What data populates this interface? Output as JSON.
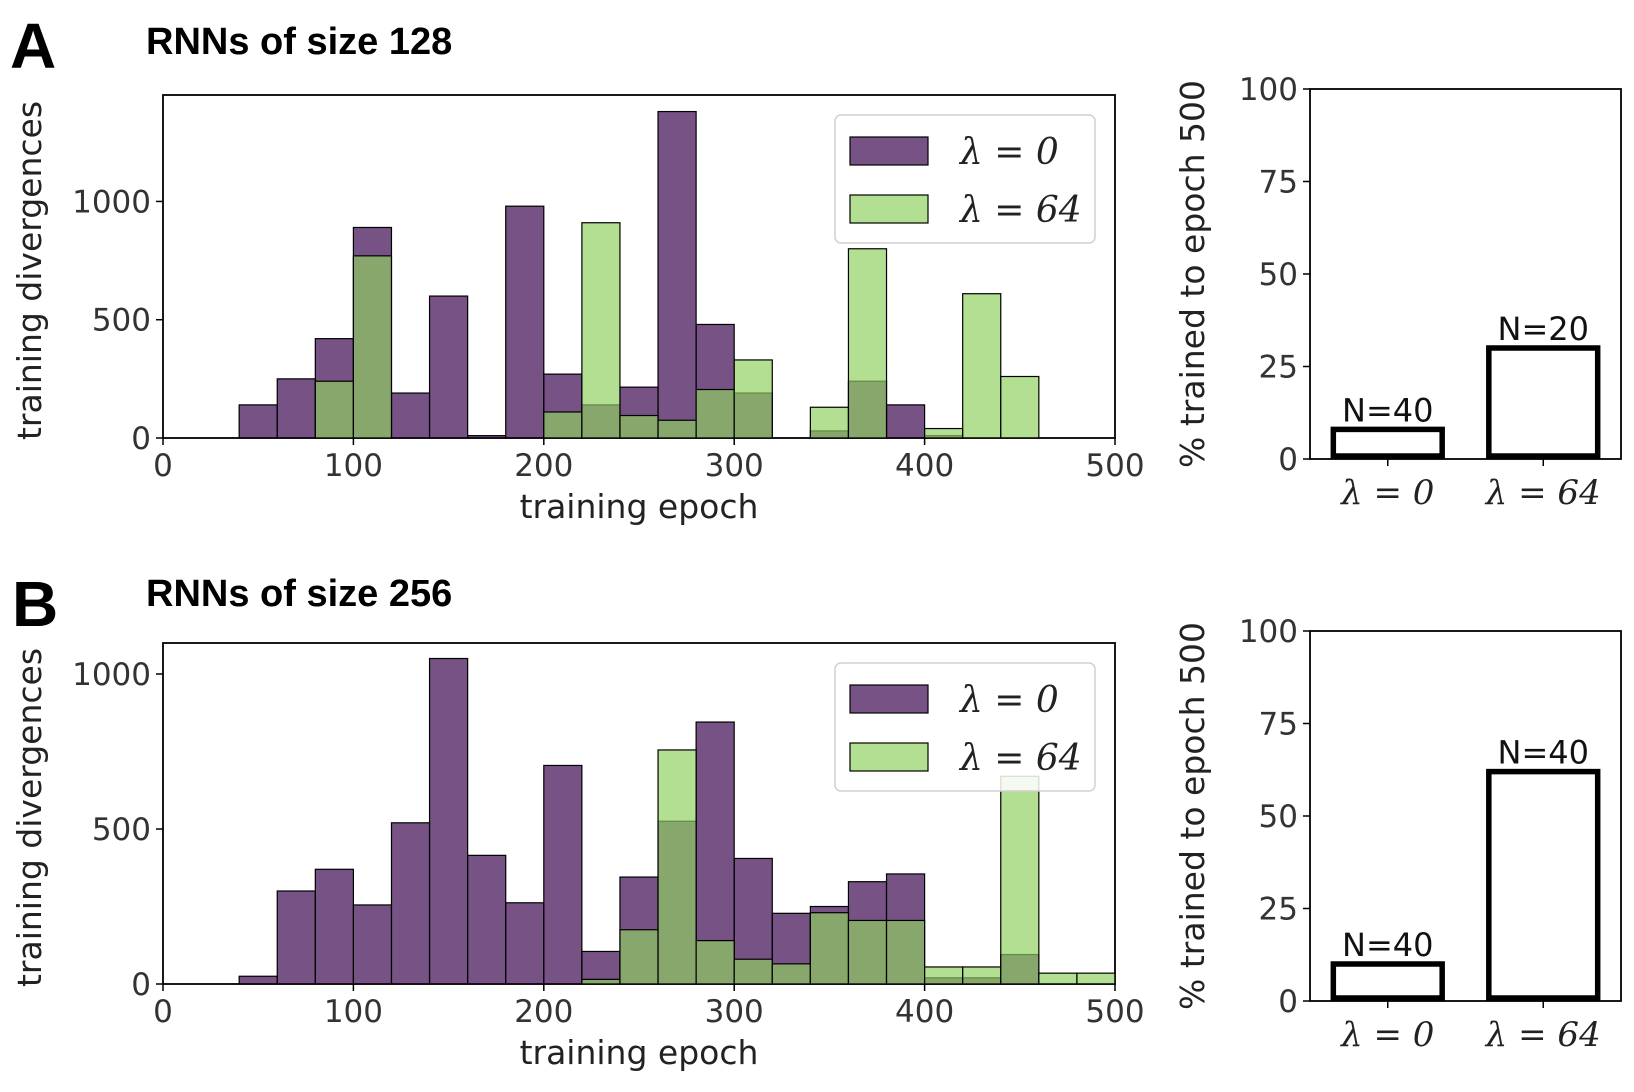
{
  "panels": [
    {
      "letter": "A",
      "title": "RNNs of size 128"
    },
    {
      "letter": "B",
      "title": "RNNs of size 256"
    }
  ],
  "chart_data": [
    {
      "type": "bar",
      "panel": "A",
      "title": "RNNs of size 128",
      "xlabel": "training epoch",
      "ylabel": "training divergences",
      "xlim": [
        0,
        500
      ],
      "ylim": [
        0,
        1450
      ],
      "xticks": [
        "0",
        "100",
        "200",
        "300",
        "400",
        "500"
      ],
      "xtick_values": [
        0,
        100,
        200,
        300,
        400,
        500
      ],
      "yticks": [
        "0",
        "500",
        "1000"
      ],
      "ytick_values": [
        0,
        500,
        1000
      ],
      "bin_width": 20,
      "bin_starts": [
        40,
        60,
        80,
        100,
        120,
        140,
        160,
        180,
        200,
        220,
        240,
        260,
        280,
        300,
        320,
        340,
        360,
        380,
        400,
        420,
        440
      ],
      "legend_position": "upper right",
      "series": [
        {
          "name": "λ = 0",
          "legend": "λ = 0",
          "color": "#4a1a5c",
          "values": [
            140,
            250,
            420,
            890,
            190,
            600,
            10,
            980,
            270,
            140,
            215,
            1380,
            480,
            190,
            0,
            30,
            240,
            140,
            10,
            0,
            0
          ]
        },
        {
          "name": "λ = 64",
          "legend": "λ = 64",
          "color": "#8fd060",
          "values": [
            0,
            0,
            240,
            770,
            0,
            0,
            0,
            0,
            110,
            910,
            95,
            75,
            205,
            330,
            0,
            130,
            800,
            0,
            40,
            610,
            260
          ]
        }
      ]
    },
    {
      "type": "bar",
      "panel": "A",
      "ylabel": "% trained to epoch 500",
      "ylim": [
        0,
        100
      ],
      "yticks": [
        "0",
        "25",
        "50",
        "75",
        "100"
      ],
      "ytick_values": [
        0,
        25,
        50,
        75,
        100
      ],
      "categories": [
        "λ = 0",
        "λ = 64"
      ],
      "values": [
        8,
        30
      ],
      "bar_labels": [
        "N=40",
        "N=20"
      ]
    },
    {
      "type": "bar",
      "panel": "B",
      "title": "RNNs of size 256",
      "xlabel": "training epoch",
      "ylabel": "training divergences",
      "xlim": [
        0,
        500
      ],
      "ylim": [
        0,
        1100
      ],
      "xticks": [
        "0",
        "100",
        "200",
        "300",
        "400",
        "500"
      ],
      "xtick_values": [
        0,
        100,
        200,
        300,
        400,
        500
      ],
      "yticks": [
        "0",
        "500",
        "1000"
      ],
      "ytick_values": [
        0,
        500,
        1000
      ],
      "bin_width": 20,
      "bin_starts": [
        40,
        60,
        80,
        100,
        120,
        140,
        160,
        180,
        200,
        220,
        240,
        260,
        280,
        300,
        320,
        340,
        360,
        380,
        400,
        420,
        440,
        460,
        480
      ],
      "legend_position": "upper right",
      "series": [
        {
          "name": "λ = 0",
          "legend": "λ = 0",
          "color": "#4a1a5c",
          "values": [
            25,
            300,
            370,
            255,
            520,
            1050,
            415,
            262,
            705,
            105,
            345,
            525,
            845,
            405,
            228,
            250,
            330,
            355,
            20,
            20,
            95,
            0,
            0
          ]
        },
        {
          "name": "λ = 64",
          "legend": "λ = 64",
          "color": "#8fd060",
          "values": [
            0,
            0,
            0,
            0,
            0,
            0,
            0,
            0,
            0,
            15,
            175,
            755,
            140,
            80,
            65,
            230,
            205,
            205,
            55,
            55,
            670,
            35,
            35
          ]
        }
      ]
    },
    {
      "type": "bar",
      "panel": "B",
      "ylabel": "% trained to epoch 500",
      "ylim": [
        0,
        100
      ],
      "yticks": [
        "0",
        "25",
        "50",
        "75",
        "100"
      ],
      "ytick_values": [
        0,
        25,
        50,
        75,
        100
      ],
      "categories": [
        "λ = 0",
        "λ = 64"
      ],
      "values": [
        10,
        62
      ],
      "bar_labels": [
        "N=40",
        "N=40"
      ]
    }
  ]
}
